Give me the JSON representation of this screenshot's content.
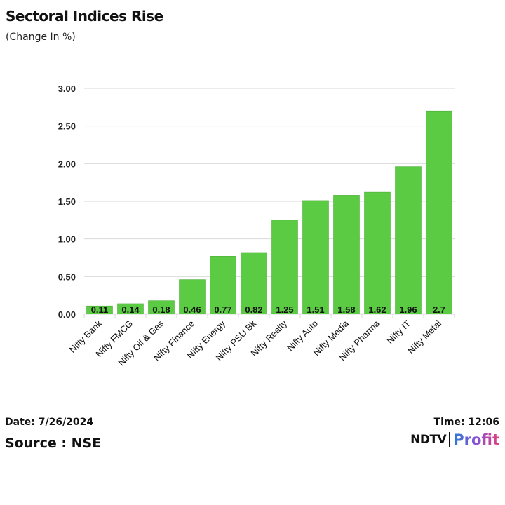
{
  "header": {
    "title": "Sectoral Indices Rise",
    "subtitle": "(Change In %)"
  },
  "footer": {
    "date": "Date: 7/26/2024",
    "source": "Source : NSE",
    "time": "Time: 12:06",
    "logo_left": "NDTV",
    "logo_right": "Profit"
  },
  "colors": {
    "bar": "#5ccb44",
    "bar_edge": "#4aab36",
    "grid": "#d9d9d9",
    "text": "#111111"
  },
  "chart_data": {
    "type": "bar",
    "title": "Sectoral Indices Rise",
    "subtitle": "(Change In %)",
    "xlabel": "",
    "ylabel": "",
    "categories": [
      "Nifty Bank",
      "Nifty FMCG",
      "Nifty Oil & Gas",
      "Nifty Finance",
      "Nifty Energy",
      "Nifty PSU Bk",
      "Nifty Realty",
      "Nifty Auto",
      "Nifty Media",
      "Nifty Pharma",
      "Nifty IT",
      "Nifty Metal"
    ],
    "values": [
      0.11,
      0.14,
      0.18,
      0.46,
      0.77,
      0.82,
      1.25,
      1.51,
      1.58,
      1.62,
      1.96,
      2.7
    ],
    "data_labels": [
      "0.11",
      "0.14",
      "0.18",
      "0.46",
      "0.77",
      "0.82",
      "1.25",
      "1.51",
      "1.58",
      "1.62",
      "1.96",
      "2.7"
    ],
    "ylim": [
      0,
      3
    ],
    "yticks": [
      0,
      0.5,
      1,
      1.5,
      2,
      2.5,
      3
    ],
    "ytick_labels": [
      "0.00",
      "0.50",
      "1.00",
      "1.50",
      "2.00",
      "2.50",
      "3.00"
    ],
    "grid": true,
    "legend": "none"
  }
}
